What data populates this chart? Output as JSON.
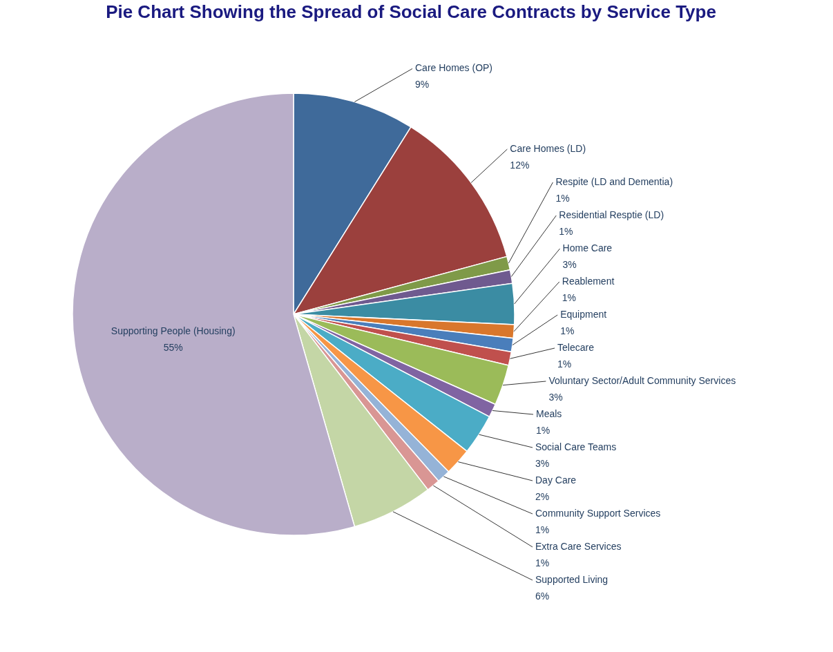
{
  "chart_data": {
    "type": "pie",
    "title": "Pie Chart Showing the Spread of Social Care Contracts by Service Type",
    "categories": [
      "Care Homes (OP)",
      "Care Homes (LD)",
      "Respite (LD and Dementia)",
      "Residential Resptie (LD)",
      "Home Care",
      "Reablement",
      "Equipment",
      "Telecare",
      "Voluntary Sector/Adult Community Services",
      "Meals",
      "Social Care Teams",
      "Day  Care",
      "Community Support Services",
      "Extra Care Services",
      "Supported Living",
      "Supporting People (Housing)"
    ],
    "values": [
      9,
      12,
      1,
      1,
      3,
      1,
      1,
      1,
      3,
      1,
      3,
      2,
      1,
      1,
      6,
      55
    ],
    "value_labels": [
      "9%",
      "12%",
      "1%",
      "1%",
      "3%",
      "1%",
      "1%",
      "1%",
      "3%",
      "1%",
      "3%",
      "2%",
      "1%",
      "1%",
      "6%",
      "55%"
    ],
    "colors": [
      "#3f6a9a",
      "#9b403d",
      "#7f9a48",
      "#6f5a8f",
      "#3b8ca3",
      "#d9772c",
      "#4a7ebb",
      "#c0504d",
      "#9bbb59",
      "#8064a2",
      "#4bacc6",
      "#f79646",
      "#95b3d7",
      "#d99694",
      "#c4d6a6",
      "#b9aec9"
    ],
    "legend": false
  }
}
